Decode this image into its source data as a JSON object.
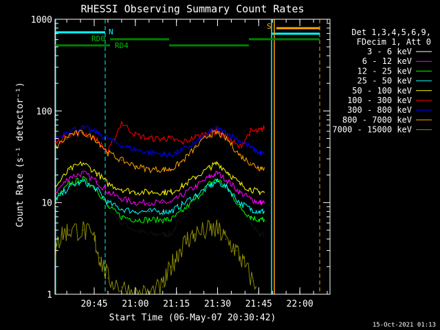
{
  "chart_data": {
    "type": "line",
    "title": "RHESSI Observing Summary Count Rates",
    "xlabel": "Start Time (06-May-07 20:30:42)",
    "ylabel": "Count Rate (s⁻¹ detector⁻¹)",
    "yscale": "log",
    "ylim": [
      1,
      1000
    ],
    "xlim": [
      "20:30:42",
      "22:11:00"
    ],
    "x_ticks": [
      "20:45",
      "21:00",
      "21:15",
      "21:30",
      "21:45",
      "22:00"
    ],
    "y_ticks": [
      "1",
      "10",
      "100",
      "1000"
    ],
    "legend_header": [
      "Det 1,3,4,5,6,9,",
      "FDecim 1, Att 0"
    ],
    "legend_position": "right",
    "series": [
      {
        "name": "3 - 6 keV",
        "color": "#000000",
        "x": [
          "20:31",
          "20:36",
          "20:41",
          "20:46",
          "20:50",
          "20:55",
          "21:00",
          "21:05",
          "21:10",
          "21:13",
          "21:17",
          "21:22",
          "21:27",
          "21:30",
          "21:34",
          "21:38",
          "21:42",
          "21:45",
          "21:47"
        ],
        "y": [
          9.5,
          15,
          18,
          14,
          9,
          6,
          5,
          4.5,
          4.5,
          4.5,
          7,
          10,
          15,
          18,
          14,
          9,
          6,
          4.5,
          4.5
        ]
      },
      {
        "name": "6 - 12 keV",
        "color": "#ff00ff",
        "x": [
          "20:31",
          "20:36",
          "20:41",
          "20:46",
          "20:50",
          "20:55",
          "21:00",
          "21:05",
          "21:10",
          "21:13",
          "21:17",
          "21:22",
          "21:27",
          "21:30",
          "21:34",
          "21:38",
          "21:42",
          "21:45",
          "21:47"
        ],
        "y": [
          13,
          19,
          21,
          17,
          13,
          11,
          10,
          10,
          10,
          10,
          12,
          15,
          19,
          21,
          17,
          13,
          11,
          10,
          10
        ]
      },
      {
        "name": "12 - 25 keV",
        "color": "#00ff00",
        "x": [
          "20:31",
          "20:36",
          "20:41",
          "20:46",
          "20:50",
          "20:55",
          "21:00",
          "21:05",
          "21:10",
          "21:13",
          "21:17",
          "21:22",
          "21:27",
          "21:30",
          "21:34",
          "21:38",
          "21:42",
          "21:45",
          "21:47"
        ],
        "y": [
          11,
          16,
          18,
          14,
          9,
          7,
          6.5,
          6.5,
          6.5,
          6.5,
          8,
          11,
          16,
          18,
          14,
          9,
          7,
          6.5,
          6.5
        ]
      },
      {
        "name": "25 - 50 keV",
        "color": "#00ffff",
        "x": [
          "20:31",
          "20:36",
          "20:41",
          "20:46",
          "20:50",
          "20:55",
          "21:00",
          "21:05",
          "21:10",
          "21:13",
          "21:17",
          "21:22",
          "21:27",
          "21:30",
          "21:34",
          "21:38",
          "21:42",
          "21:45",
          "21:47"
        ],
        "y": [
          10.5,
          15,
          17,
          14,
          10,
          8.5,
          8,
          8,
          8,
          8,
          9.5,
          12,
          15,
          17,
          14,
          10,
          8.5,
          8,
          8
        ]
      },
      {
        "name": "50 - 100 keV",
        "color": "#ffff00",
        "x": [
          "20:31",
          "20:36",
          "20:41",
          "20:46",
          "20:50",
          "20:55",
          "21:00",
          "21:05",
          "21:10",
          "21:13",
          "21:17",
          "21:22",
          "21:27",
          "21:30",
          "21:34",
          "21:38",
          "21:42",
          "21:45",
          "21:47"
        ],
        "y": [
          15,
          23,
          27,
          21,
          16,
          14,
          13,
          13,
          13,
          13,
          15,
          19,
          24,
          27,
          21,
          16,
          14,
          13,
          13
        ]
      },
      {
        "name": "100 - 300 keV",
        "color": "#ff0000",
        "x": [
          "20:31",
          "20:36",
          "20:41",
          "20:46",
          "20:50",
          "20:55",
          "21:00",
          "21:05",
          "21:10",
          "21:13",
          "21:17",
          "21:22",
          "21:27",
          "21:30",
          "21:34",
          "21:38",
          "21:42",
          "21:45",
          "21:47"
        ],
        "y": [
          45,
          55,
          58,
          48,
          35,
          75,
          55,
          50,
          50,
          50,
          45,
          52,
          58,
          60,
          50,
          40,
          60,
          60,
          65
        ]
      },
      {
        "name": "300 - 800 keV",
        "color": "#0000ff",
        "x": [
          "20:31",
          "20:36",
          "20:41",
          "20:46",
          "20:50",
          "20:55",
          "21:00",
          "21:05",
          "21:10",
          "21:13",
          "21:17",
          "21:22",
          "21:27",
          "21:30",
          "21:34",
          "21:38",
          "21:42",
          "21:45",
          "21:47"
        ],
        "y": [
          50,
          62,
          65,
          58,
          50,
          42,
          38,
          35,
          34,
          33,
          37,
          45,
          58,
          64,
          56,
          48,
          40,
          35,
          34
        ]
      },
      {
        "name": "800 - 7000 keV",
        "color": "#ffa500",
        "x": [
          "20:31",
          "20:36",
          "20:41",
          "20:46",
          "20:50",
          "20:55",
          "21:00",
          "21:05",
          "21:10",
          "21:13",
          "21:17",
          "21:22",
          "21:27",
          "21:30",
          "21:34",
          "21:38",
          "21:42",
          "21:45",
          "21:47"
        ],
        "y": [
          40,
          55,
          58,
          48,
          35,
          29,
          25,
          23,
          23,
          23,
          28,
          40,
          55,
          58,
          47,
          33,
          27,
          24,
          24
        ]
      },
      {
        "name": "7000 - 15000 keV",
        "color": "#8b8b00",
        "x": [
          "20:31",
          "20:33",
          "20:36",
          "20:41",
          "20:45",
          "20:47",
          "20:50",
          "20:55",
          "21:00",
          "21:05",
          "21:10",
          "21:13",
          "21:16",
          "21:19",
          "21:22",
          "21:27",
          "21:30",
          "21:33",
          "21:37",
          "21:40",
          "21:44"
        ],
        "y": [
          3,
          4.5,
          5,
          5,
          4,
          2.5,
          1.5,
          1.2,
          1,
          1,
          1.2,
          2,
          3,
          4,
          4.5,
          5,
          5,
          4,
          3,
          2,
          1.2
        ]
      }
    ],
    "annotations": [
      {
        "text": "N",
        "color": "#00ffff"
      },
      {
        "text": "S",
        "color": "#ffa500"
      },
      {
        "text": "RD0",
        "color": "#00c000"
      },
      {
        "text": "RD4",
        "color": "#00c000"
      }
    ]
  },
  "colors": {
    "background": "#000000",
    "axes": "#ffffff",
    "night": "#00ffff",
    "saa": "#ffa500",
    "decimation": "#008000"
  },
  "timestamp": "15-Oct-2021 01:13"
}
